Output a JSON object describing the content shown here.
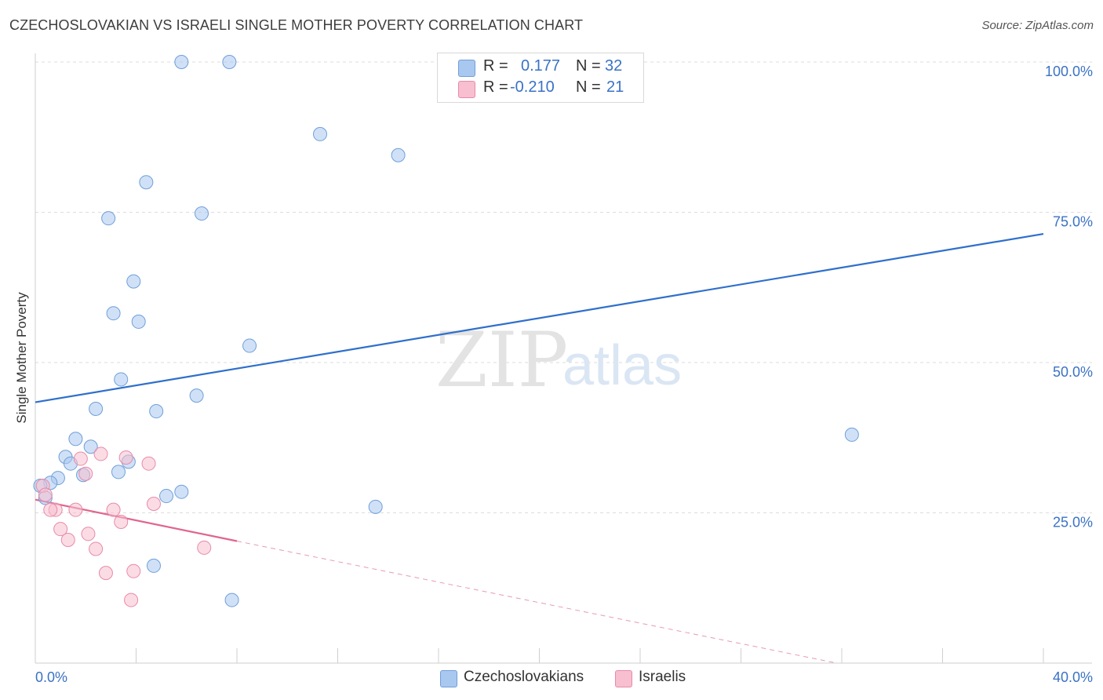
{
  "title": "CZECHOSLOVAKIAN VS ISRAELI SINGLE MOTHER POVERTY CORRELATION CHART",
  "source": "Source: ZipAtlas.com",
  "watermark": {
    "zip": "ZIP",
    "atlas": "atlas"
  },
  "legend_top": {
    "rows": [
      {
        "r_label": "R =",
        "r_value": "0.177",
        "n_label": "N =",
        "n_value": "32",
        "color": "#a9c8f0",
        "border": "#6f9fd8"
      },
      {
        "r_label": "R =",
        "r_value": "-0.210",
        "n_label": "N =",
        "n_value": "21",
        "color": "#f7bfd0",
        "border": "#e88aa8"
      }
    ]
  },
  "legend_bottom": [
    {
      "label": "Czechoslovakians",
      "color": "#a9c8f0",
      "border": "#6f9fd8"
    },
    {
      "label": "Israelis",
      "color": "#f7bfd0",
      "border": "#e88aa8"
    }
  ],
  "chart_data": {
    "type": "scatter",
    "title": "CZECHOSLOVAKIAN VS ISRAELI SINGLE MOTHER POVERTY CORRELATION CHART",
    "xlabel": "",
    "ylabel": "Single Mother Poverty",
    "xlim": [
      0,
      40
    ],
    "ylim": [
      0,
      100
    ],
    "x_tick_labels": [
      "0.0%",
      "40.0%"
    ],
    "y_ticks": [
      25,
      50,
      75,
      100
    ],
    "y_tick_labels": [
      "25.0%",
      "50.0%",
      "75.0%",
      "100.0%"
    ],
    "series": [
      {
        "name": "Czechoslovakians",
        "color": "#a9c8f0",
        "stroke": "#6f9fd8",
        "points": [
          [
            5.8,
            100.0
          ],
          [
            7.7,
            100.0
          ],
          [
            11.3,
            88.0
          ],
          [
            14.4,
            84.5
          ],
          [
            4.4,
            80.0
          ],
          [
            2.9,
            74.0
          ],
          [
            6.6,
            74.8
          ],
          [
            3.9,
            63.5
          ],
          [
            3.1,
            58.2
          ],
          [
            4.1,
            56.8
          ],
          [
            8.5,
            52.8
          ],
          [
            3.4,
            47.2
          ],
          [
            6.4,
            44.5
          ],
          [
            2.4,
            42.3
          ],
          [
            4.8,
            41.9
          ],
          [
            32.4,
            38.0
          ],
          [
            1.6,
            37.3
          ],
          [
            2.2,
            36.0
          ],
          [
            1.2,
            34.3
          ],
          [
            3.7,
            33.5
          ],
          [
            1.4,
            33.2
          ],
          [
            3.3,
            31.8
          ],
          [
            1.9,
            31.3
          ],
          [
            0.9,
            30.8
          ],
          [
            0.6,
            30.0
          ],
          [
            0.2,
            29.5
          ],
          [
            5.8,
            28.5
          ],
          [
            5.2,
            27.8
          ],
          [
            0.4,
            27.5
          ],
          [
            13.5,
            26.0
          ],
          [
            4.7,
            16.2
          ],
          [
            7.8,
            10.5
          ]
        ]
      },
      {
        "name": "Israelis",
        "color": "#f7bfd0",
        "stroke": "#e88aa8",
        "points": [
          [
            2.6,
            34.8
          ],
          [
            3.6,
            34.2
          ],
          [
            4.5,
            33.2
          ],
          [
            1.8,
            34.0
          ],
          [
            2.0,
            31.5
          ],
          [
            0.3,
            29.5
          ],
          [
            0.4,
            28.0
          ],
          [
            4.7,
            26.5
          ],
          [
            1.6,
            25.5
          ],
          [
            0.8,
            25.5
          ],
          [
            3.1,
            25.5
          ],
          [
            0.6,
            25.5
          ],
          [
            3.4,
            23.5
          ],
          [
            1.0,
            22.3
          ],
          [
            2.1,
            21.5
          ],
          [
            1.3,
            20.5
          ],
          [
            2.4,
            19.0
          ],
          [
            6.7,
            19.2
          ],
          [
            2.8,
            15.0
          ],
          [
            3.9,
            15.3
          ],
          [
            3.8,
            10.5
          ]
        ]
      }
    ],
    "trendlines": [
      {
        "series": "Czechoslovakians",
        "x": [
          0,
          40
        ],
        "y": [
          43.4,
          71.4
        ],
        "style": "solid",
        "color": "#2f6fcc"
      },
      {
        "series": "Israelis",
        "x": [
          0,
          8
        ],
        "y": [
          27.2,
          20.3
        ],
        "style": "solid",
        "color": "#e0658d"
      },
      {
        "series": "Israelis",
        "x": [
          8,
          31.8
        ],
        "y": [
          20.3,
          0
        ],
        "style": "dashed",
        "color": "#e79ab5"
      }
    ]
  }
}
